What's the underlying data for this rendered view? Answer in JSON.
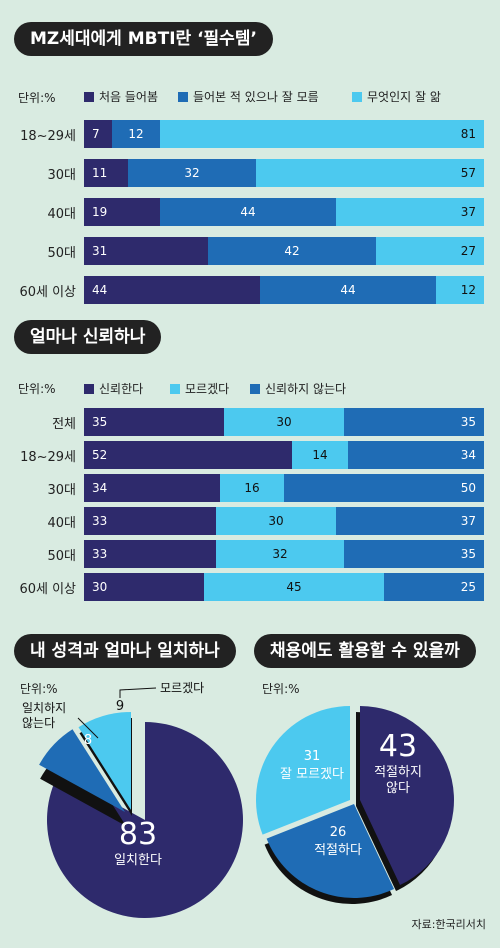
{
  "section1": {
    "title": "MZ세대에게 MBTI란 ‘필수템’",
    "unit": "단위:%",
    "legend": [
      "처음 들어봄",
      "들어본 적 있으나 잘 모름",
      "무엇인지 잘 앎"
    ]
  },
  "section2": {
    "title": "얼마나 신뢰하나",
    "unit": "단위:%",
    "legend": [
      "신뢰한다",
      "모르겠다",
      "신뢰하지 않는다"
    ]
  },
  "section3": {
    "title": "내 성격과 얼마나 일치하나",
    "unit": "단위:%",
    "labels": {
      "a": "83",
      "a_text": "일치한다",
      "b": "8",
      "b_text": "일치하지\n않는다",
      "c": "9",
      "c_text": "모르겠다"
    }
  },
  "section4": {
    "title": "채용에도 활용할 수 있을까",
    "unit": "단위:%",
    "labels": {
      "a": "43",
      "a_text": "적절하지\n않다",
      "b": "26",
      "b_text": "적절하다",
      "c": "31",
      "c_text": "잘 모르겠다"
    }
  },
  "source": "자료:한국리서치",
  "colors": {
    "dark": "#2e2a6c",
    "mid": "#1f6cb5",
    "light": "#4cc9ef"
  },
  "chart_data": [
    {
      "type": "bar",
      "title": "MZ세대에게 MBTI란 ‘필수템’",
      "categories": [
        "18~29세",
        "30대",
        "40대",
        "50대",
        "60세 이상"
      ],
      "series": [
        {
          "name": "처음 들어봄",
          "values": [
            7,
            11,
            19,
            31,
            44
          ]
        },
        {
          "name": "들어본 적 있으나 잘 모름",
          "values": [
            12,
            32,
            44,
            42,
            44
          ]
        },
        {
          "name": "무엇인지 잘 앎",
          "values": [
            81,
            57,
            37,
            27,
            12
          ]
        }
      ]
    },
    {
      "type": "bar",
      "title": "얼마나 신뢰하나",
      "categories": [
        "전체",
        "18~29세",
        "30대",
        "40대",
        "50대",
        "60세 이상"
      ],
      "series": [
        {
          "name": "신뢰한다",
          "values": [
            35,
            52,
            34,
            33,
            33,
            30
          ]
        },
        {
          "name": "모르겠다",
          "values": [
            30,
            14,
            16,
            30,
            32,
            45
          ]
        },
        {
          "name": "신뢰하지 않는다",
          "values": [
            35,
            34,
            50,
            37,
            35,
            25
          ]
        }
      ]
    },
    {
      "type": "pie",
      "title": "내 성격과 얼마나 일치하나",
      "categories": [
        "일치한다",
        "일치하지 않는다",
        "모르겠다"
      ],
      "values": [
        83,
        8,
        9
      ]
    },
    {
      "type": "pie",
      "title": "채용에도 활용할 수 있을까",
      "categories": [
        "적절하지 않다",
        "적절하다",
        "잘 모르겠다"
      ],
      "values": [
        43,
        26,
        31
      ]
    }
  ]
}
